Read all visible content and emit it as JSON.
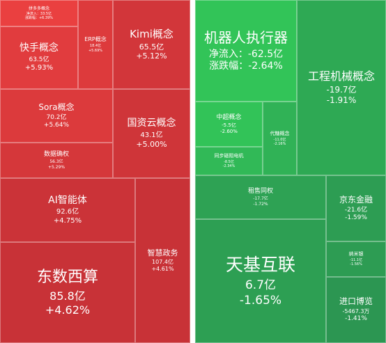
{
  "chart_data": {
    "type": "treemap",
    "groups": [
      {
        "side": "inflow",
        "items": [
          {
            "name": "拼多多概念",
            "flow_label": "净流入：33.5亿",
            "change_label": "涨跌幅：+6.39%",
            "flow": 33.5,
            "change": 6.39
          },
          {
            "name": "快手概念",
            "flow_label": "63.5亿",
            "change_label": "+5.93%",
            "flow": 63.5,
            "change": 5.93
          },
          {
            "name": "ERP概念",
            "flow_label": "18.4亿",
            "change_label": "+5.69%",
            "flow": 18.4,
            "change": 5.69
          },
          {
            "name": "Kimi概念",
            "flow_label": "65.5亿",
            "change_label": "+5.12%",
            "flow": 65.5,
            "change": 5.12
          },
          {
            "name": "Sora概念",
            "flow_label": "70.2亿",
            "change_label": "+5.64%",
            "flow": 70.2,
            "change": 5.64
          },
          {
            "name": "国资云概念",
            "flow_label": "43.1亿",
            "change_label": "+5.00%",
            "flow": 43.1,
            "change": 5.0
          },
          {
            "name": "数据确权",
            "flow_label": "56.3亿",
            "change_label": "+5.29%",
            "flow": 56.3,
            "change": 5.29
          },
          {
            "name": "AI智能体",
            "flow_label": "92.6亿",
            "change_label": "+4.75%",
            "flow": 92.6,
            "change": 4.75
          },
          {
            "name": "智慧政务",
            "flow_label": "107.4亿",
            "change_label": "+4.61%",
            "flow": 107.4,
            "change": 4.61
          },
          {
            "name": "东数西算",
            "flow_label": "85.8亿",
            "change_label": "+4.62%",
            "flow": 85.8,
            "change": 4.62
          }
        ]
      },
      {
        "side": "outflow",
        "items": [
          {
            "name": "机器人执行器",
            "flow_label": "净流入：-62.5亿",
            "change_label": "涨跌幅：-2.64%",
            "flow": -62.5,
            "change": -2.64
          },
          {
            "name": "工程机械概念",
            "flow_label": "-19.7亿",
            "change_label": "-1.91%",
            "flow": -19.7,
            "change": -1.91
          },
          {
            "name": "中超概念",
            "flow_label": "-5.5亿",
            "change_label": "-2.60%",
            "flow": -5.5,
            "change": -2.6
          },
          {
            "name": "代糖概念",
            "flow_label": "-11.0亿",
            "change_label": "-2.16%",
            "flow": -11.0,
            "change": -2.16
          },
          {
            "name": "同步磁阻电机",
            "flow_label": "-8.5亿",
            "change_label": "-2.34%",
            "flow": -8.5,
            "change": -2.34
          },
          {
            "name": "租售同权",
            "flow_label": "-17.7亿",
            "change_label": "-1.72%",
            "flow": -17.7,
            "change": -1.72
          },
          {
            "name": "京东金融",
            "flow_label": "-21.6亿",
            "change_label": "-1.59%",
            "flow": -21.6,
            "change": -1.59
          },
          {
            "name": "纳米银",
            "flow_label": "-11.1亿",
            "change_label": "-1.56%",
            "flow": -11.1,
            "change": -1.56
          },
          {
            "name": "天基互联",
            "flow_label": "6.7亿",
            "change_label": "-1.65%",
            "flow": 6.7,
            "change": -1.65
          },
          {
            "name": "进口博览",
            "flow_label": "-5467.3万",
            "change_label": "-1.41%",
            "flow": -0.54673,
            "change": -1.41
          }
        ]
      }
    ]
  }
}
